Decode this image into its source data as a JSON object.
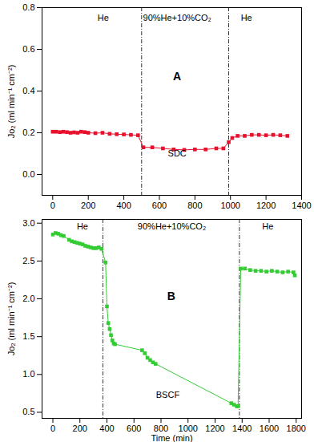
{
  "chart_data": [
    {
      "type": "line",
      "marker": "square",
      "color": "#e8112d",
      "y_label": "Jo₂ (ml min⁻¹ cm⁻²)",
      "xlim": [
        -60,
        1400
      ],
      "xticks": [
        0,
        200,
        400,
        600,
        800,
        1000,
        1200,
        1400
      ],
      "ylim": [
        -0.1,
        0.8
      ],
      "yticks": [
        {
          "value": 0,
          "label": "0.0"
        },
        0.2,
        0.4,
        0.6,
        0.8
      ],
      "boundaries": [
        500,
        990
      ],
      "annotations": [
        {
          "text": "He",
          "x": 284,
          "y": 0.75
        },
        {
          "text": "90%He+10%CO₂",
          "x": 700,
          "y": 0.75
        },
        {
          "text": "He",
          "x": 1090,
          "y": 0.75
        },
        {
          "text": "A",
          "x": 700,
          "y": 0.47
        },
        {
          "text": "SDC",
          "x": 700,
          "y": 0.1
        }
      ],
      "x": [
        0,
        20,
        40,
        60,
        80,
        100,
        120,
        140,
        160,
        180,
        200,
        240,
        280,
        320,
        360,
        400,
        440,
        480,
        510,
        560,
        620,
        680,
        740,
        800,
        860,
        920,
        960,
        990,
        1010,
        1040,
        1080,
        1120,
        1160,
        1200,
        1240,
        1280,
        1320
      ],
      "values": [
        0.205,
        0.205,
        0.203,
        0.205,
        0.203,
        0.2,
        0.202,
        0.2,
        0.205,
        0.203,
        0.2,
        0.198,
        0.2,
        0.195,
        0.193,
        0.192,
        0.19,
        0.188,
        0.13,
        0.13,
        0.125,
        0.12,
        0.118,
        0.12,
        0.12,
        0.125,
        0.125,
        0.155,
        0.175,
        0.185,
        0.185,
        0.19,
        0.19,
        0.188,
        0.19,
        0.188,
        0.185
      ]
    },
    {
      "type": "line",
      "marker": "square",
      "color": "#33cc33",
      "x_label": "Time (min)",
      "y_label": "Jo₂ (ml min⁻¹ cm⁻²)",
      "xlim": [
        -80,
        1840
      ],
      "xticks": [
        0,
        200,
        400,
        600,
        800,
        1000,
        1200,
        1400,
        1600,
        1800
      ],
      "ylim": [
        0.42,
        3.05
      ],
      "yticks": [
        0.5,
        {
          "value": 1,
          "label": "1.0"
        },
        1.5,
        {
          "value": 2,
          "label": "2.0"
        },
        2.5,
        {
          "value": 3,
          "label": "3.0"
        }
      ],
      "boundaries": [
        370,
        1380
      ],
      "annotations": [
        {
          "text": "He",
          "x": 219,
          "y": 2.96
        },
        {
          "text": "90%He+10%CO₂",
          "x": 880,
          "y": 2.96
        },
        {
          "text": "He",
          "x": 1590,
          "y": 2.96
        },
        {
          "text": "B",
          "x": 876,
          "y": 2.03
        },
        {
          "text": "BSCF",
          "x": 850,
          "y": 0.73
        }
      ],
      "x": [
        0,
        20,
        40,
        60,
        80,
        120,
        140,
        160,
        180,
        200,
        220,
        240,
        260,
        280,
        300,
        320,
        340,
        360,
        390,
        400,
        410,
        420,
        430,
        440,
        450,
        460,
        660,
        680,
        700,
        720,
        740,
        760,
        1320,
        1340,
        1360,
        1370,
        1390,
        1420,
        1460,
        1500,
        1540,
        1580,
        1620,
        1660,
        1700,
        1740,
        1780,
        1790
      ],
      "values": [
        2.85,
        2.87,
        2.86,
        2.84,
        2.83,
        2.78,
        2.76,
        2.75,
        2.74,
        2.73,
        2.72,
        2.7,
        2.69,
        2.68,
        2.67,
        2.67,
        2.68,
        2.66,
        2.48,
        1.9,
        1.68,
        1.6,
        1.52,
        1.45,
        1.41,
        1.4,
        1.32,
        1.28,
        1.22,
        1.19,
        1.16,
        1.14,
        0.62,
        0.6,
        0.58,
        0.58,
        2.4,
        2.4,
        2.38,
        2.37,
        2.37,
        2.36,
        2.37,
        2.36,
        2.35,
        2.36,
        2.35,
        2.31
      ]
    }
  ]
}
